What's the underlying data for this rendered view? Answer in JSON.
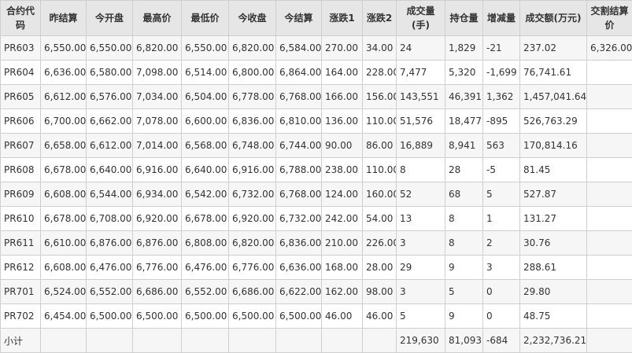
{
  "headers": [
    "合约代码",
    "昨结算",
    "今开盘",
    "最高价",
    "最低价",
    "今收盘",
    "今结算",
    "涨跌1",
    "涨跌2",
    "成交量(手)",
    "持仓量",
    "增减量",
    "成交额(万元)",
    "交割结算价"
  ],
  "rows": [
    [
      "PR603",
      "6,550.00",
      "6,550.00",
      "6,820.00",
      "6,550.00",
      "6,820.00",
      "6,584.00",
      "270.00",
      "34.00",
      "24",
      "1,829",
      "-21",
      "237.02",
      "6,326.00"
    ],
    [
      "PR604",
      "6,636.00",
      "6,580.00",
      "7,098.00",
      "6,514.00",
      "6,800.00",
      "6,864.00",
      "164.00",
      "228.00",
      "7,477",
      "5,320",
      "-1,699",
      "76,741.61",
      ""
    ],
    [
      "PR605",
      "6,612.00",
      "6,576.00",
      "7,034.00",
      "6,504.00",
      "6,778.00",
      "6,768.00",
      "166.00",
      "156.00",
      "143,551",
      "46,391",
      "1,362",
      "1,457,041.64",
      ""
    ],
    [
      "PR606",
      "6,700.00",
      "6,662.00",
      "7,078.00",
      "6,600.00",
      "6,836.00",
      "6,810.00",
      "136.00",
      "110.00",
      "51,576",
      "18,477",
      "-895",
      "526,763.29",
      ""
    ],
    [
      "PR607",
      "6,658.00",
      "6,612.00",
      "7,014.00",
      "6,568.00",
      "6,748.00",
      "6,744.00",
      "90.00",
      "86.00",
      "16,889",
      "8,941",
      "563",
      "170,814.16",
      ""
    ],
    [
      "PR608",
      "6,678.00",
      "6,640.00",
      "6,916.00",
      "6,640.00",
      "6,916.00",
      "6,788.00",
      "238.00",
      "110.00",
      "8",
      "28",
      "-5",
      "81.45",
      ""
    ],
    [
      "PR609",
      "6,608.00",
      "6,544.00",
      "6,934.00",
      "6,542.00",
      "6,732.00",
      "6,768.00",
      "124.00",
      "160.00",
      "52",
      "68",
      "5",
      "527.87",
      ""
    ],
    [
      "PR610",
      "6,678.00",
      "6,708.00",
      "6,920.00",
      "6,678.00",
      "6,920.00",
      "6,732.00",
      "242.00",
      "54.00",
      "13",
      "8",
      "1",
      "131.27",
      ""
    ],
    [
      "PR611",
      "6,610.00",
      "6,876.00",
      "6,876.00",
      "6,808.00",
      "6,820.00",
      "6,836.00",
      "210.00",
      "226.00",
      "3",
      "8",
      "2",
      "30.76",
      ""
    ],
    [
      "PR612",
      "6,608.00",
      "6,476.00",
      "6,776.00",
      "6,476.00",
      "6,776.00",
      "6,636.00",
      "168.00",
      "28.00",
      "29",
      "9",
      "3",
      "288.61",
      ""
    ],
    [
      "PR701",
      "6,524.00",
      "6,552.00",
      "6,686.00",
      "6,552.00",
      "6,686.00",
      "6,622.00",
      "162.00",
      "98.00",
      "3",
      "5",
      "0",
      "29.80",
      ""
    ],
    [
      "PR702",
      "6,454.00",
      "6,500.00",
      "6,500.00",
      "6,500.00",
      "6,500.00",
      "6,500.00",
      "46.00",
      "46.00",
      "5",
      "9",
      "0",
      "48.75",
      ""
    ]
  ],
  "total": [
    "小计",
    "",
    "",
    "",
    "",
    "",
    "",
    "",
    "",
    "219,630",
    "81,093",
    "-684",
    "2,232,736.21",
    ""
  ]
}
